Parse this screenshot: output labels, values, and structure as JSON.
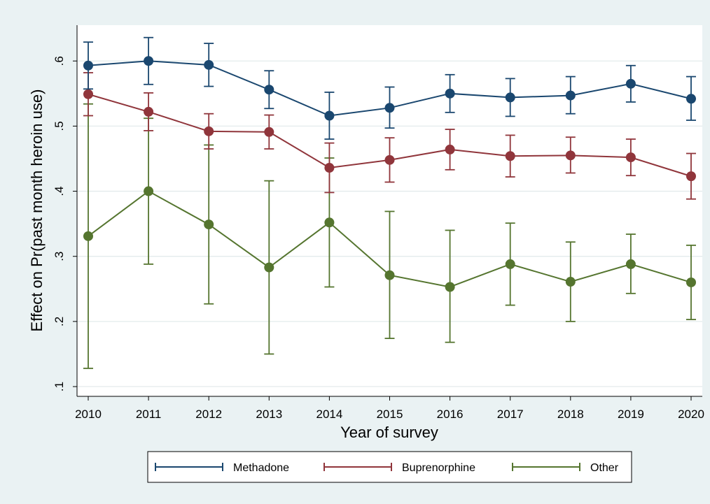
{
  "chart_data": {
    "type": "line",
    "xlabel": "Year of survey",
    "ylabel": "Effect on Pr(past month heroin use)",
    "x": [
      2010,
      2011,
      2012,
      2013,
      2014,
      2015,
      2016,
      2017,
      2018,
      2019,
      2020
    ],
    "x_tick_labels": [
      "2010",
      "2011",
      "2012",
      "2013",
      "2014",
      "2015",
      "2016",
      "2017",
      "2018",
      "2019",
      "2020"
    ],
    "y_ticks": [
      0.1,
      0.2,
      0.3,
      0.4,
      0.5,
      0.6
    ],
    "y_tick_labels": [
      ".1",
      ".2",
      ".3",
      ".4",
      ".5",
      ".6"
    ],
    "xlim": [
      2010,
      2020
    ],
    "ylim": [
      0.085,
      0.655
    ],
    "grid": true,
    "legend_position": "bottom",
    "series": [
      {
        "name": "Methadone",
        "color": "#1a476f",
        "values": [
          0.593,
          0.6,
          0.594,
          0.556,
          0.516,
          0.528,
          0.55,
          0.544,
          0.547,
          0.565,
          0.542
        ],
        "ci_low": [
          0.557,
          0.564,
          0.561,
          0.527,
          0.48,
          0.497,
          0.521,
          0.515,
          0.519,
          0.537,
          0.509
        ],
        "ci_high": [
          0.629,
          0.636,
          0.627,
          0.585,
          0.552,
          0.56,
          0.579,
          0.573,
          0.576,
          0.593,
          0.576
        ]
      },
      {
        "name": "Buprenorphine",
        "color": "#90353b",
        "values": [
          0.549,
          0.522,
          0.492,
          0.491,
          0.436,
          0.448,
          0.464,
          0.454,
          0.455,
          0.452,
          0.423
        ],
        "ci_low": [
          0.516,
          0.493,
          0.465,
          0.465,
          0.398,
          0.414,
          0.433,
          0.422,
          0.428,
          0.424,
          0.388
        ],
        "ci_high": [
          0.582,
          0.551,
          0.519,
          0.517,
          0.474,
          0.482,
          0.495,
          0.486,
          0.483,
          0.48,
          0.458
        ]
      },
      {
        "name": "Other",
        "color": "#55752f",
        "values": [
          0.331,
          0.4,
          0.349,
          0.283,
          0.352,
          0.271,
          0.253,
          0.288,
          0.261,
          0.288,
          0.26
        ],
        "ci_low": [
          0.128,
          0.288,
          0.227,
          0.15,
          0.253,
          0.174,
          0.168,
          0.225,
          0.2,
          0.243,
          0.203
        ],
        "ci_high": [
          0.534,
          0.512,
          0.471,
          0.416,
          0.451,
          0.369,
          0.34,
          0.351,
          0.322,
          0.334,
          0.317
        ]
      }
    ]
  }
}
